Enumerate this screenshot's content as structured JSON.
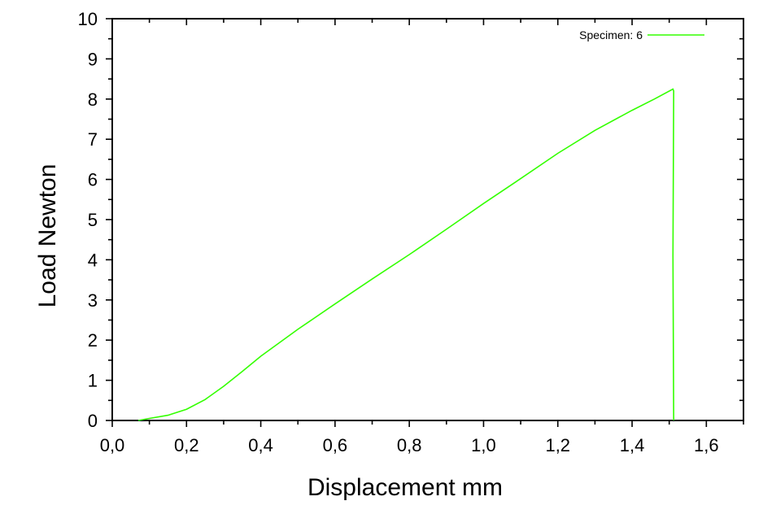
{
  "chart_data": {
    "type": "line",
    "xlabel": "Displacement mm",
    "ylabel": "Load Newton",
    "xlim": [
      0.0,
      1.7
    ],
    "ylim": [
      0,
      10
    ],
    "x_ticks": [
      "0,0",
      "0,2",
      "0,4",
      "0,6",
      "0,8",
      "1,0",
      "1,2",
      "1,4",
      "1,6"
    ],
    "x_tick_values": [
      0.0,
      0.2,
      0.4,
      0.6,
      0.8,
      1.0,
      1.2,
      1.4,
      1.6
    ],
    "y_ticks": [
      "0",
      "1",
      "2",
      "3",
      "4",
      "5",
      "6",
      "7",
      "8",
      "9",
      "10"
    ],
    "y_tick_values": [
      0,
      1,
      2,
      3,
      4,
      5,
      6,
      7,
      8,
      9,
      10
    ],
    "grid": false,
    "legend_position": "top-right",
    "series": [
      {
        "name": "Specimen: 6",
        "color": "#33ff00",
        "x": [
          0.07,
          0.1,
          0.15,
          0.2,
          0.25,
          0.3,
          0.35,
          0.4,
          0.5,
          0.6,
          0.7,
          0.8,
          0.9,
          1.0,
          1.1,
          1.2,
          1.3,
          1.4,
          1.46,
          1.51,
          1.512,
          1.51,
          1.512
        ],
        "y": [
          0.0,
          0.05,
          0.13,
          0.28,
          0.52,
          0.85,
          1.22,
          1.6,
          2.27,
          2.9,
          3.52,
          4.13,
          4.76,
          5.4,
          6.02,
          6.65,
          7.22,
          7.72,
          8.0,
          8.25,
          8.2,
          4.1,
          0.0
        ]
      }
    ]
  }
}
